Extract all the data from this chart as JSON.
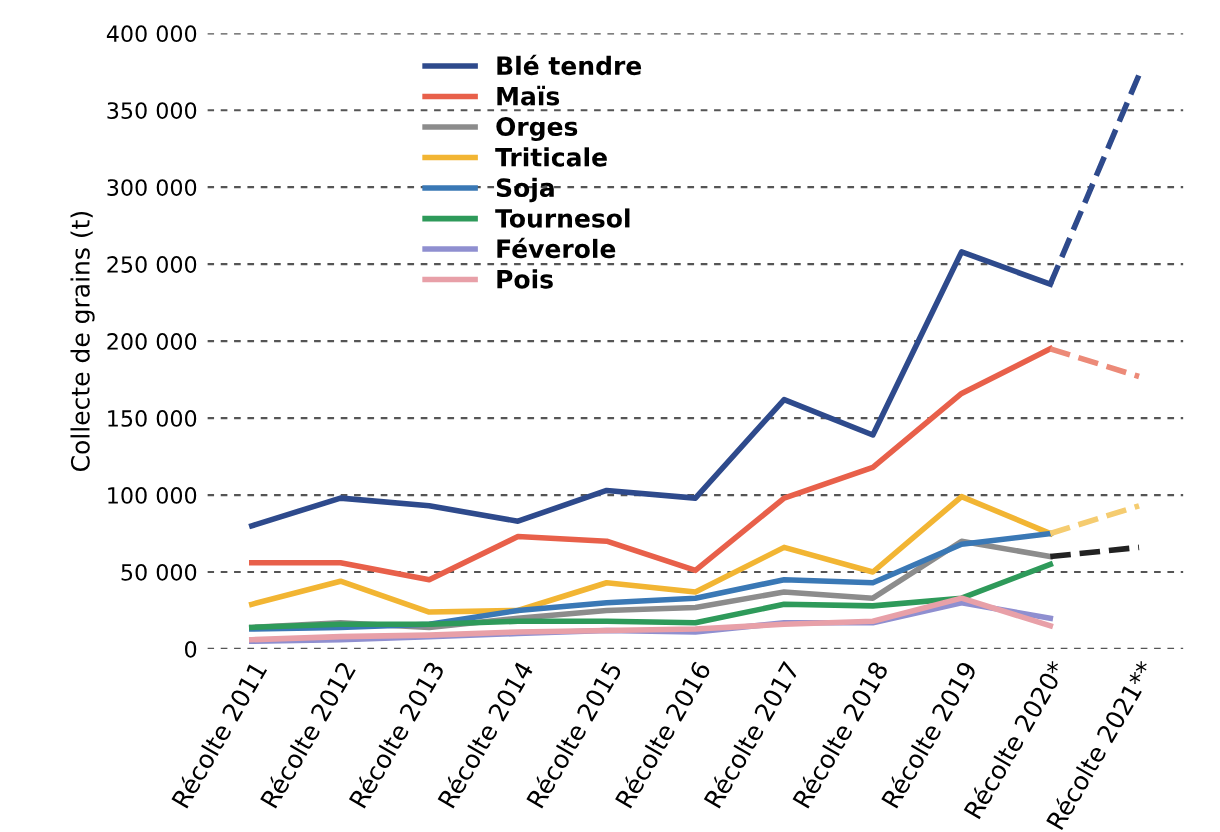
{
  "chart_data": {
    "type": "line",
    "ylabel": "Collecte de grains (t)",
    "categories": [
      "Récolte 2011",
      "Récolte 2012",
      "Récolte 2013",
      "Récolte 2014",
      "Récolte 2015",
      "Récolte 2016",
      "Récolte 2017",
      "Récolte 2018",
      "Récolte 2019",
      "Récolte 2020*",
      "Récolte 2021**"
    ],
    "series": [
      {
        "name": "Blé tendre",
        "color": "#2e4a8c",
        "values": [
          80000,
          98000,
          93000,
          83000,
          103000,
          98000,
          162000,
          139000,
          258000,
          237000,
          null
        ]
      },
      {
        "name": "Maïs",
        "color": "#e8604a",
        "values": [
          56000,
          56000,
          45000,
          73000,
          70000,
          51000,
          98000,
          118000,
          166000,
          195000,
          null
        ]
      },
      {
        "name": "Orges",
        "color": "#8c8c8c",
        "values": [
          14000,
          17000,
          14000,
          20000,
          25000,
          27000,
          37000,
          33000,
          70000,
          60000,
          null
        ]
      },
      {
        "name": "Triticale",
        "color": "#f2b533",
        "values": [
          29000,
          44000,
          24000,
          25000,
          43000,
          37000,
          66000,
          50000,
          99000,
          75000,
          null
        ]
      },
      {
        "name": "Soja",
        "color": "#3a78b5",
        "values": [
          13000,
          14000,
          16000,
          25000,
          30000,
          33000,
          45000,
          43000,
          68000,
          75000,
          null
        ]
      },
      {
        "name": "Tournesol",
        "color": "#2e9a5a",
        "values": [
          14000,
          16000,
          16000,
          18000,
          18000,
          17000,
          29000,
          28000,
          33000,
          55000,
          null
        ]
      },
      {
        "name": "Féverole",
        "color": "#8f8fd0",
        "values": [
          5000,
          6000,
          8000,
          10000,
          12000,
          11000,
          17000,
          17000,
          30000,
          20000,
          null
        ]
      },
      {
        "name": "Pois",
        "color": "#e8a0a8",
        "values": [
          6000,
          8000,
          9000,
          11000,
          12000,
          13000,
          16000,
          18000,
          33000,
          15000,
          null
        ]
      },
      {
        "color": "#2e4a8c",
        "line_style": "dashed",
        "values": [
          null,
          null,
          null,
          null,
          null,
          null,
          null,
          null,
          null,
          237000,
          373000
        ]
      },
      {
        "color": "#ec8a78",
        "line_style": "dashed",
        "values": [
          null,
          null,
          null,
          null,
          null,
          null,
          null,
          null,
          null,
          195000,
          177000
        ]
      },
      {
        "color": "#f5cc70",
        "line_style": "dashed",
        "values": [
          null,
          null,
          null,
          null,
          null,
          null,
          null,
          null,
          null,
          75000,
          93000
        ]
      },
      {
        "color": "#222222",
        "line_style": "dashed",
        "values": [
          null,
          null,
          null,
          null,
          null,
          null,
          null,
          null,
          null,
          60000,
          66000
        ]
      }
    ],
    "ylim": [
      0,
      400000
    ],
    "yticks": [
      {
        "value": 0,
        "label": "0"
      },
      {
        "value": 50000,
        "label": "50 000"
      },
      {
        "value": 100000,
        "label": "100 000"
      },
      {
        "value": 150000,
        "label": "150 000"
      },
      {
        "value": 200000,
        "label": "200 000"
      },
      {
        "value": 250000,
        "label": "250 000"
      },
      {
        "value": 300000,
        "label": "300 000"
      },
      {
        "value": 350000,
        "label": "350 000"
      },
      {
        "value": 400000,
        "label": "400 000"
      }
    ],
    "grid": "y",
    "legend": "top left",
    "line_style": "solid",
    "marker": "none"
  }
}
